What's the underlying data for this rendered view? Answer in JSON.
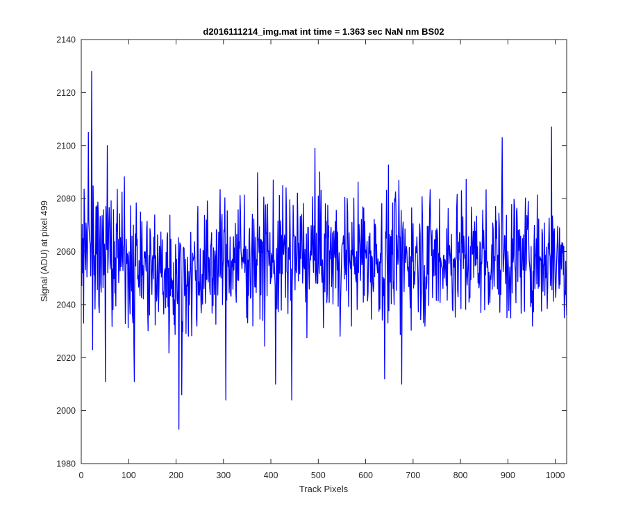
{
  "chart_data": {
    "type": "line",
    "title": "d2016111214_img.mat int time = 1.363 sec  NaN nm BS02",
    "xlabel": "Track Pixels",
    "ylabel": "Signal (ADU) at pixel 499",
    "xlim": [
      0,
      1024
    ],
    "ylim": [
      1980,
      2140
    ],
    "xticks": [
      0,
      100,
      200,
      300,
      400,
      500,
      600,
      700,
      800,
      900,
      1000
    ],
    "yticks": [
      1980,
      2000,
      2020,
      2040,
      2060,
      2080,
      2100,
      2120,
      2140
    ],
    "xtick_labels": [
      "0",
      "100",
      "200",
      "300",
      "400",
      "500",
      "600",
      "700",
      "800",
      "900",
      "1000"
    ],
    "ytick_labels": [
      "1980",
      "2000",
      "2020",
      "2040",
      "2060",
      "2080",
      "2100",
      "2120",
      "2140"
    ],
    "grid": false,
    "series": [
      {
        "color": "#0000ff",
        "x_range": [
          1,
          1024
        ],
        "approx_mean": 2058,
        "approx_noise_amplitude": 16,
        "notable_points": [
          {
            "x": 1,
            "y": 2047
          },
          {
            "x": 5,
            "y": 2033
          },
          {
            "x": 15,
            "y": 2105
          },
          {
            "x": 22,
            "y": 2128
          },
          {
            "x": 24,
            "y": 2023
          },
          {
            "x": 51,
            "y": 2011
          },
          {
            "x": 55,
            "y": 2100
          },
          {
            "x": 112,
            "y": 2011
          },
          {
            "x": 206,
            "y": 1993
          },
          {
            "x": 212,
            "y": 2006
          },
          {
            "x": 305,
            "y": 2004
          },
          {
            "x": 410,
            "y": 2010
          },
          {
            "x": 444,
            "y": 2004
          },
          {
            "x": 493,
            "y": 2099
          },
          {
            "x": 640,
            "y": 2012
          },
          {
            "x": 676,
            "y": 2010
          },
          {
            "x": 888,
            "y": 2103
          },
          {
            "x": 992,
            "y": 2107
          },
          {
            "x": 1024,
            "y": 2036
          }
        ]
      }
    ]
  }
}
